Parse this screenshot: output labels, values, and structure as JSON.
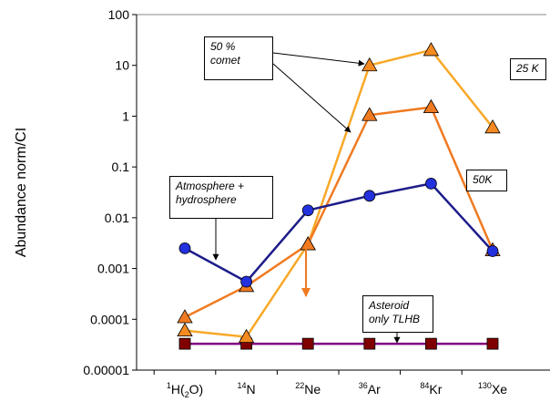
{
  "chart_data": {
    "type": "line",
    "y_scale": "log",
    "y_label": "Abundance norm/CI",
    "categories": [
      {
        "sup": "1",
        "name": "H(",
        "sub": "2",
        "end": "O)"
      },
      {
        "sup": "14",
        "name": "N"
      },
      {
        "sup": "22",
        "name": "Ne"
      },
      {
        "sup": "36",
        "name": "Ar"
      },
      {
        "sup": "84",
        "name": "Kr"
      },
      {
        "sup": "130",
        "name": "Xe"
      }
    ],
    "ylim": [
      1e-05,
      100
    ],
    "yticks": [
      1e-05,
      0.0001,
      0.001,
      0.01,
      0.1,
      1,
      10,
      100
    ],
    "series": [
      {
        "name": "Atmosphere + hydrosphere",
        "color": "#1c1c8a",
        "marker": "circle",
        "marker_color": "#2330dd",
        "values": [
          0.0025,
          0.00055,
          0.014,
          0.027,
          0.047,
          0.0022
        ]
      },
      {
        "name": "50K",
        "color": "#f07a20",
        "marker": "triangle",
        "marker_color": "#f07a20",
        "values": [
          0.00011,
          0.00045,
          0.003,
          1.05,
          1.5,
          0.0023
        ]
      },
      {
        "name": "25 K",
        "color": "#f8a828",
        "marker": "triangle",
        "marker_color": "#f58a20",
        "values": [
          6e-05,
          4.5e-05,
          0.003,
          10,
          20,
          0.6
        ]
      },
      {
        "name": "Asteroid only TLHB",
        "color": "#800080",
        "marker": "square",
        "marker_color": "#800000",
        "values": [
          3.3e-05,
          3.3e-05,
          3.3e-05,
          3.3e-05,
          3.3e-05,
          3.3e-05
        ]
      }
    ],
    "annotation": "50 % comet"
  }
}
